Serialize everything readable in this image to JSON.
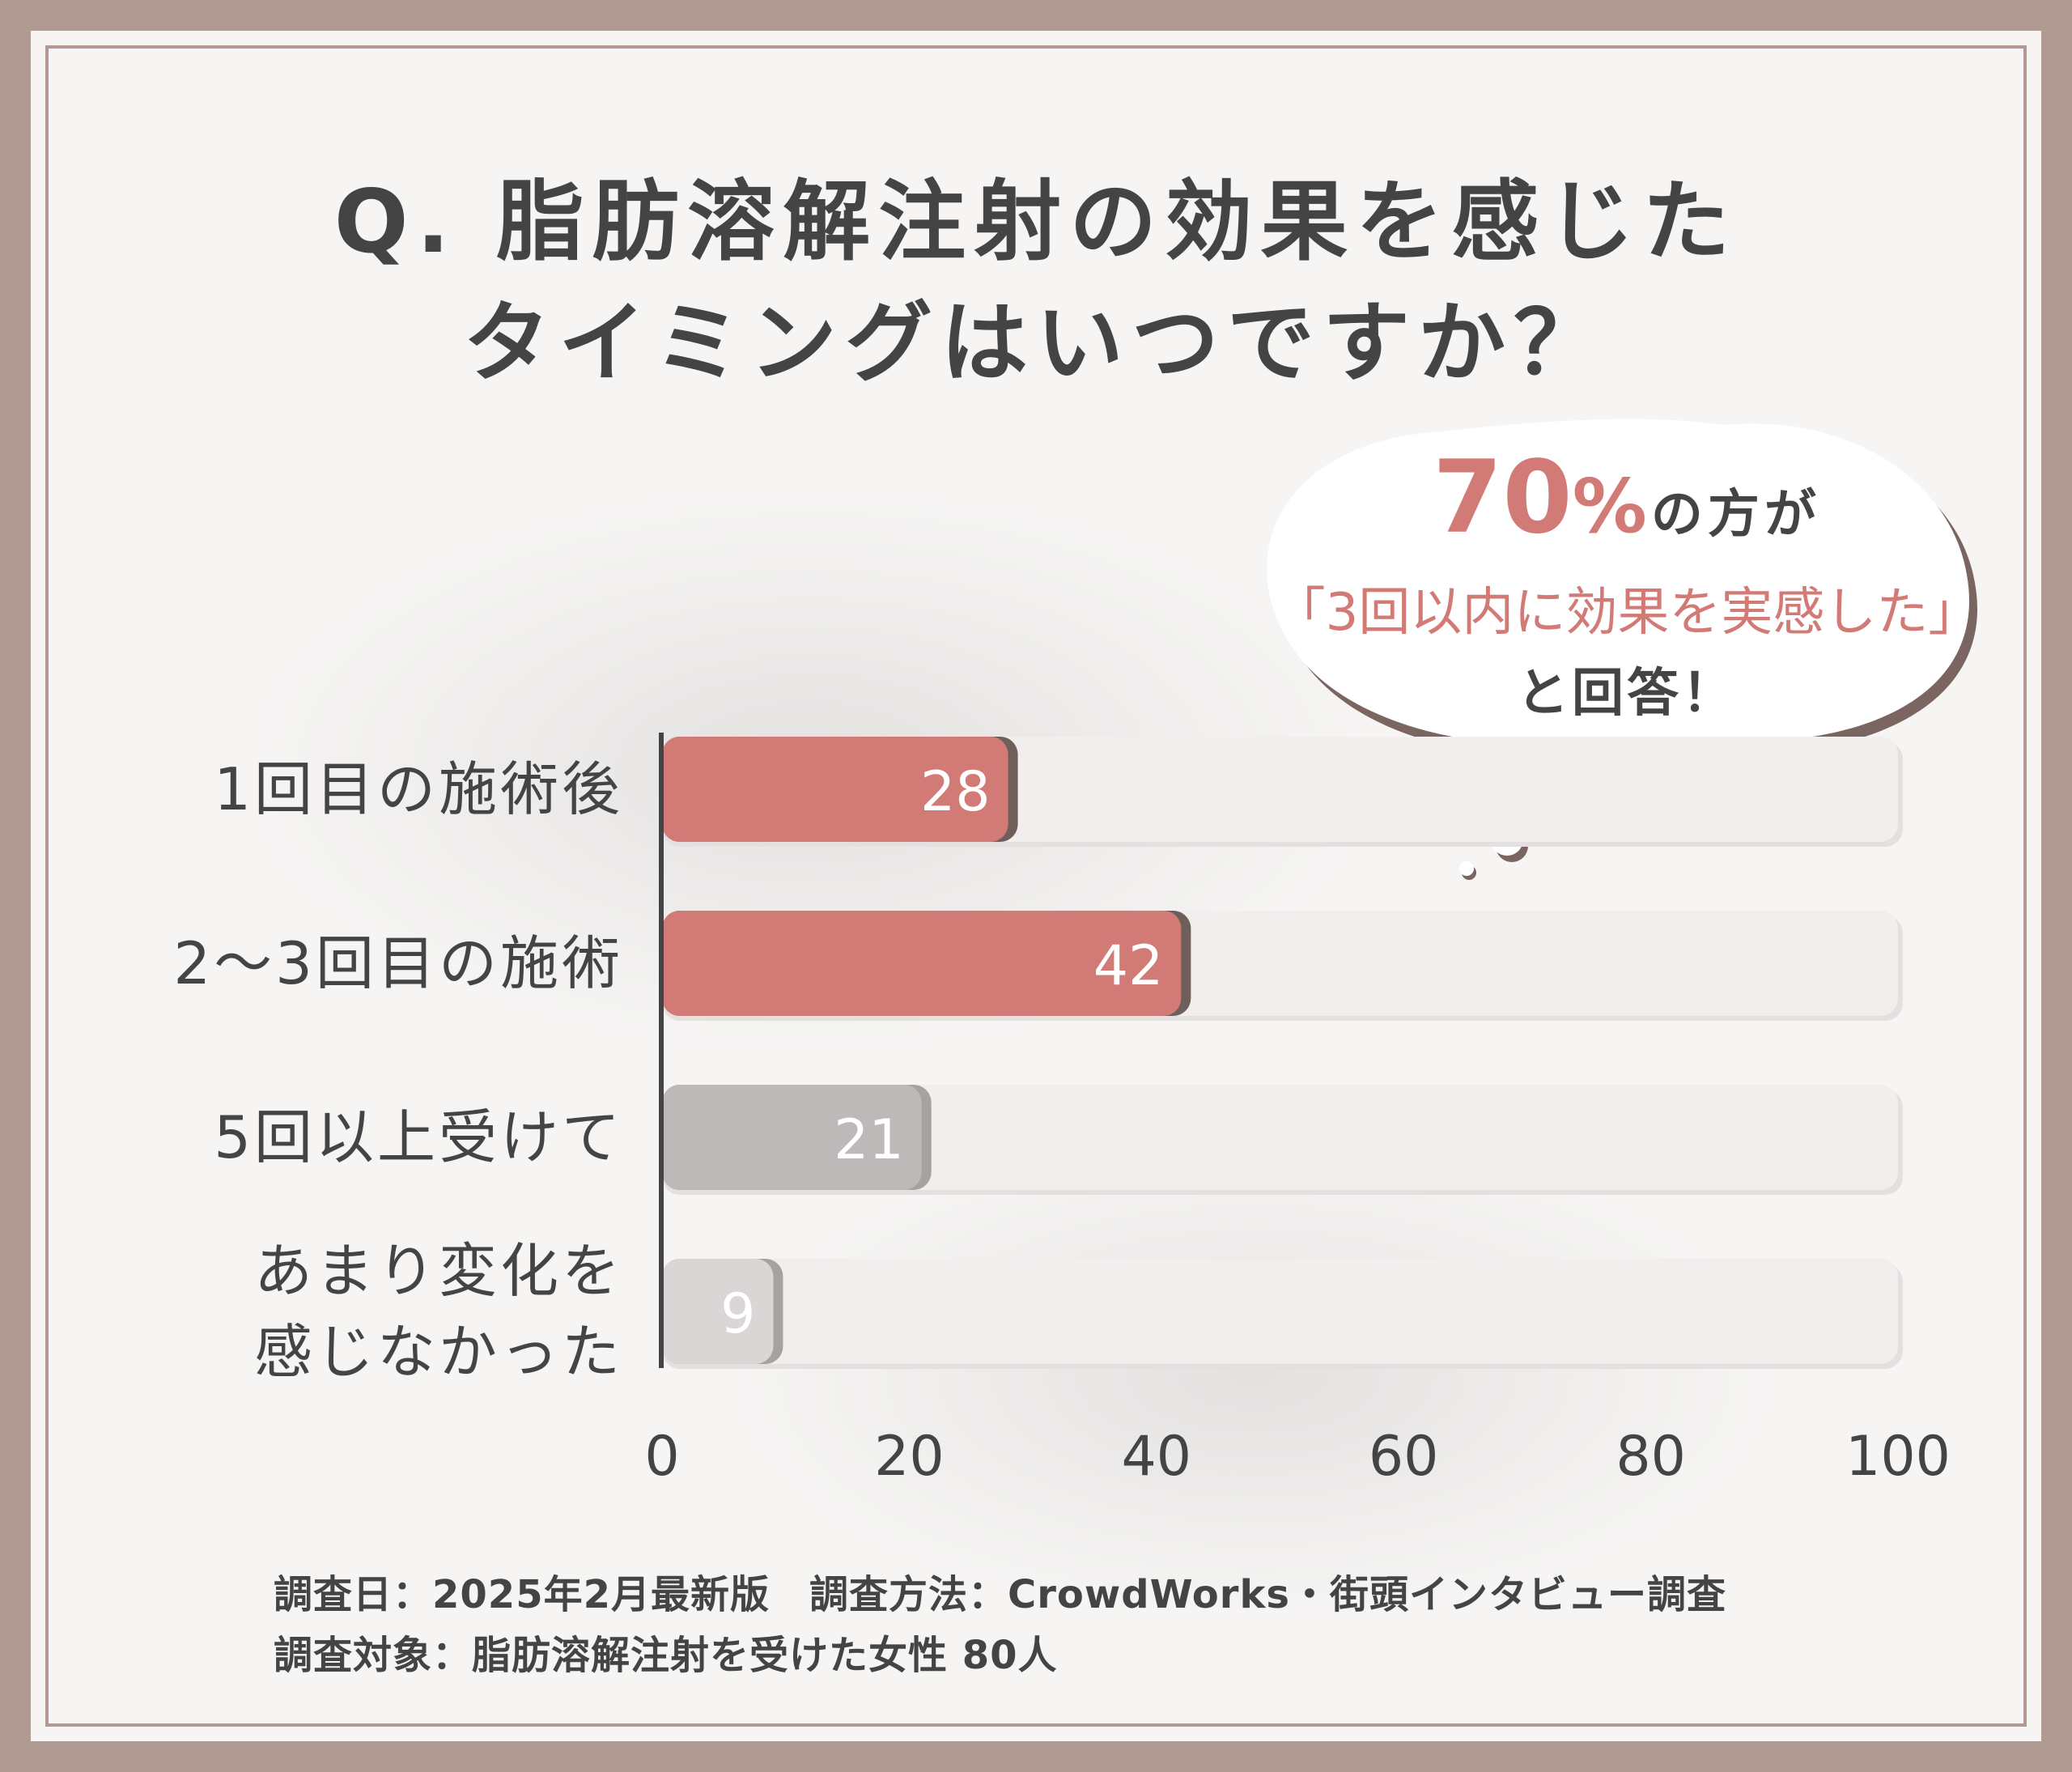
{
  "title": {
    "line1": "Q. 脂肪溶解注射の効果を感じた",
    "line2": "タイミングはいつですか？"
  },
  "callout": {
    "percent": "70",
    "percent_sign": "%",
    "suffix": "の方が",
    "quote": "「3回以内に効果を実感した」",
    "answer": "と回答！"
  },
  "chart_data": {
    "type": "bar",
    "orientation": "horizontal",
    "categories": [
      "1回目の施術後",
      "2～3回目の施術",
      "5回以上受けて",
      "あまり変化を感じなかった"
    ],
    "category_lines": [
      [
        "1回目の施術後"
      ],
      [
        "2～3回目の施術"
      ],
      [
        "5回以上受けて"
      ],
      [
        "あまり変化を",
        "感じなかった"
      ]
    ],
    "values": [
      28,
      42,
      21,
      9
    ],
    "value_labels": [
      "28",
      "42",
      "21",
      "9"
    ],
    "bar_colors": [
      "#d27a75",
      "#d27a75",
      "#bdb9b8",
      "#d9d6d5"
    ],
    "xlim": [
      0,
      100
    ],
    "xticks": [
      "0",
      "20",
      "40",
      "60",
      "80",
      "100"
    ],
    "grid": false,
    "legend": "none"
  },
  "footnote": {
    "line1": "調査日：2025年2月最新版　調査方法：CrowdWorks・街頭インタビュー調査",
    "line2": "調査対象：脂肪溶解注射を受けた女性 80人"
  },
  "colors": {
    "accent": "#d27a75",
    "gray_bar": "#bdb9b8",
    "text": "#444444",
    "frame": "#b09a92"
  }
}
